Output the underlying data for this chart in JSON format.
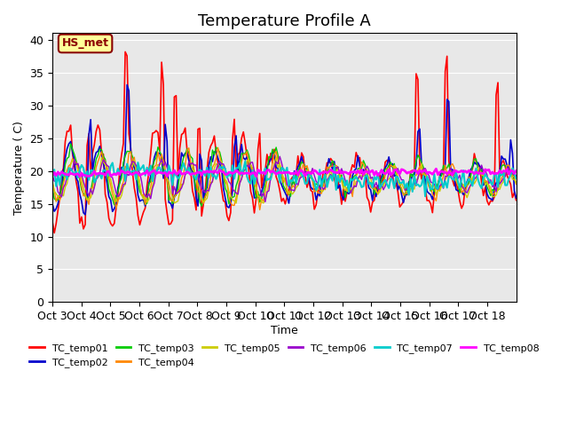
{
  "title": "Temperature Profile A",
  "xlabel": "Time",
  "ylabel": "Temperature ( C)",
  "ylim": [
    0,
    41
  ],
  "yticks": [
    0,
    5,
    10,
    15,
    20,
    25,
    30,
    35,
    40
  ],
  "x_labels": [
    "Oct 3",
    "Oct 4",
    "Oct 5",
    "Oct 6",
    "Oct 7",
    "Oct 8",
    "Oct 9",
    "Oct 10",
    "Oct 11",
    "Oct 12",
    "Oct 13",
    "Oct 14",
    "Oct 15",
    "Oct 16",
    "Oct 17",
    "Oct 18"
  ],
  "annotation": "HS_met",
  "bg_color": "#e8e8e8",
  "series_colors": {
    "TC_temp01": "#ff0000",
    "TC_temp02": "#0000cc",
    "TC_temp03": "#00cc00",
    "TC_temp04": "#ff8800",
    "TC_temp05": "#cccc00",
    "TC_temp06": "#9900cc",
    "TC_temp07": "#00cccc",
    "TC_temp08": "#ff00ff"
  },
  "title_fontsize": 13,
  "label_fontsize": 9
}
